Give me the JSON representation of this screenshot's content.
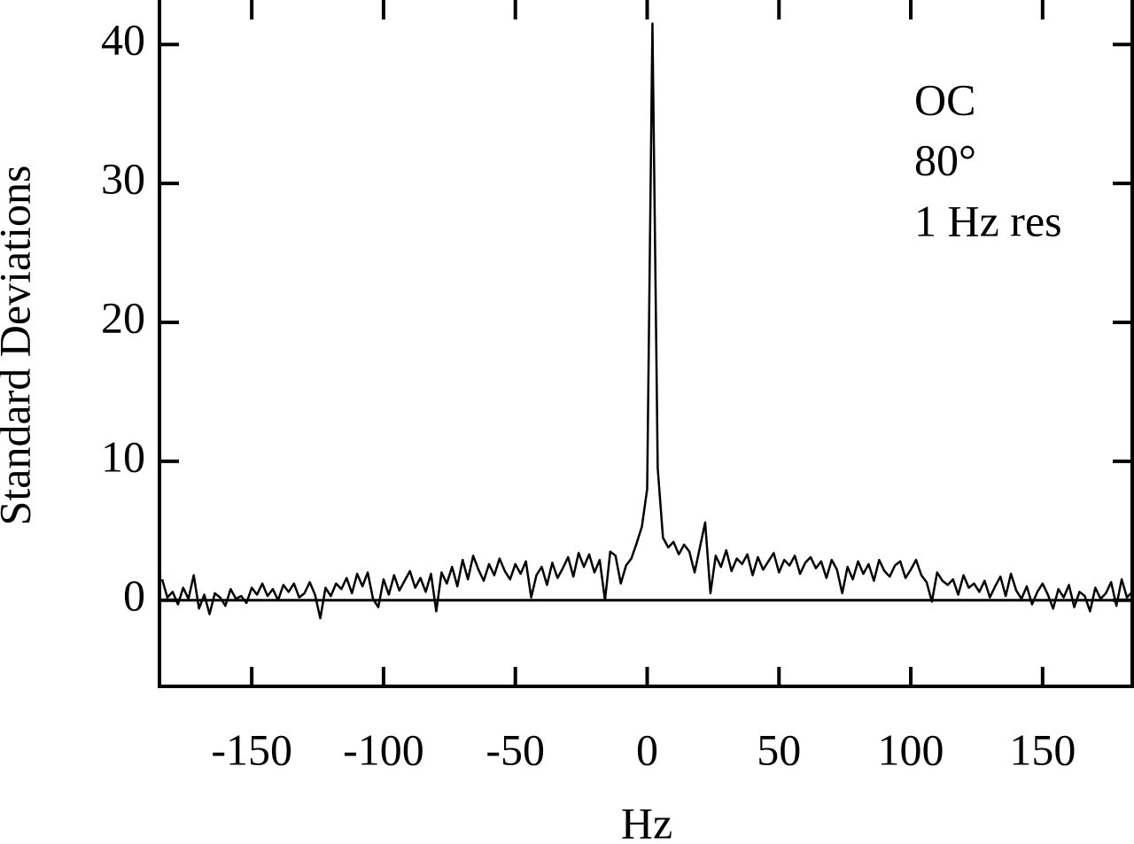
{
  "chart_data": {
    "type": "line",
    "xlabel": "Hz",
    "ylabel": "Standard Deviations",
    "annotations": [
      "OC",
      "80°",
      "1 Hz res"
    ],
    "color": "#000000",
    "hline": 0,
    "xlim": [
      -185,
      184
    ],
    "ylim": [
      -6.2,
      43.2
    ],
    "xticks": [
      -150,
      -100,
      -50,
      0,
      50,
      100,
      150
    ],
    "yticks": [
      0,
      10,
      20,
      30,
      40
    ],
    "x": [
      -184,
      -182,
      -180,
      -178,
      -176,
      -174,
      -172,
      -170,
      -168,
      -166,
      -164,
      -162,
      -160,
      -158,
      -156,
      -154,
      -152,
      -150,
      -148,
      -146,
      -144,
      -142,
      -140,
      -138,
      -136,
      -134,
      -132,
      -130,
      -128,
      -126,
      -124,
      -122,
      -120,
      -118,
      -116,
      -114,
      -112,
      -110,
      -108,
      -106,
      -104,
      -102,
      -100,
      -98,
      -96,
      -94,
      -92,
      -90,
      -88,
      -86,
      -84,
      -82,
      -80,
      -78,
      -76,
      -74,
      -72,
      -70,
      -68,
      -66,
      -64,
      -62,
      -60,
      -58,
      -56,
      -54,
      -52,
      -50,
      -48,
      -46,
      -44,
      -42,
      -40,
      -38,
      -36,
      -34,
      -32,
      -30,
      -28,
      -26,
      -24,
      -22,
      -20,
      -18,
      -16,
      -14,
      -12,
      -10,
      -8,
      -6,
      -4,
      -2,
      0,
      2,
      4,
      6,
      8,
      10,
      12,
      14,
      16,
      18,
      20,
      22,
      24,
      26,
      28,
      30,
      32,
      34,
      36,
      38,
      40,
      42,
      44,
      46,
      48,
      50,
      52,
      54,
      56,
      58,
      60,
      62,
      64,
      66,
      68,
      70,
      72,
      74,
      76,
      78,
      80,
      82,
      84,
      86,
      88,
      90,
      92,
      94,
      96,
      98,
      100,
      102,
      104,
      106,
      108,
      110,
      112,
      114,
      116,
      118,
      120,
      122,
      124,
      126,
      128,
      130,
      132,
      134,
      136,
      138,
      140,
      142,
      144,
      146,
      148,
      150,
      152,
      154,
      156,
      158,
      160,
      162,
      164,
      166,
      168,
      170,
      172,
      174,
      176,
      178,
      180,
      182,
      184
    ],
    "values": [
      1.5,
      0.2,
      0.6,
      -0.3,
      0.9,
      0.1,
      1.8,
      -0.6,
      0.4,
      -1.0,
      0.5,
      0.2,
      -0.4,
      0.8,
      0.1,
      0.3,
      -0.2,
      0.9,
      0.4,
      1.2,
      0.3,
      0.8,
      0.0,
      1.1,
      0.6,
      1.2,
      0.2,
      0.5,
      1.3,
      0.4,
      -1.3,
      0.9,
      0.3,
      1.2,
      0.8,
      1.6,
      0.5,
      1.9,
      1.0,
      2.0,
      0.1,
      -0.5,
      1.5,
      0.4,
      1.8,
      0.7,
      1.4,
      2.1,
      0.9,
      1.6,
      0.6,
      1.9,
      -0.8,
      2.0,
      1.2,
      2.4,
      1.0,
      2.9,
      1.5,
      3.2,
      2.2,
      1.4,
      2.6,
      1.8,
      3.0,
      2.1,
      1.5,
      2.6,
      1.9,
      2.8,
      0.2,
      1.8,
      2.4,
      1.1,
      2.7,
      1.6,
      2.3,
      3.1,
      1.7,
      3.4,
      2.4,
      3.3,
      2.0,
      2.9,
      0.0,
      3.5,
      3.2,
      1.2,
      2.5,
      3.0,
      4.1,
      5.3,
      8.0,
      41.5,
      9.5,
      4.5,
      3.8,
      4.2,
      3.3,
      4.0,
      3.5,
      2.0,
      3.8,
      5.6,
      0.5,
      3.2,
      2.4,
      3.6,
      2.1,
      3.0,
      2.6,
      3.3,
      1.8,
      3.1,
      2.2,
      2.8,
      3.4,
      2.0,
      2.9,
      2.5,
      3.2,
      1.9,
      2.7,
      3.1,
      2.3,
      2.8,
      1.6,
      2.9,
      2.2,
      0.5,
      2.4,
      1.5,
      2.8,
      1.9,
      2.6,
      1.4,
      2.9,
      2.1,
      1.7,
      2.5,
      2.8,
      1.6,
      2.2,
      2.9,
      1.8,
      1.3,
      -0.1,
      2.0,
      1.4,
      1.1,
      1.5,
      0.4,
      1.8,
      0.9,
      1.2,
      0.6,
      1.4,
      0.2,
      1.0,
      1.7,
      0.3,
      1.9,
      0.7,
      0.1,
      1.0,
      -0.3,
      0.6,
      1.2,
      0.4,
      -0.6,
      0.8,
      0.2,
      1.1,
      -0.5,
      0.6,
      0.3,
      -0.8,
      0.9,
      0.1,
      0.5,
      1.3,
      -0.4,
      1.5,
      0.2,
      0.6
    ]
  }
}
